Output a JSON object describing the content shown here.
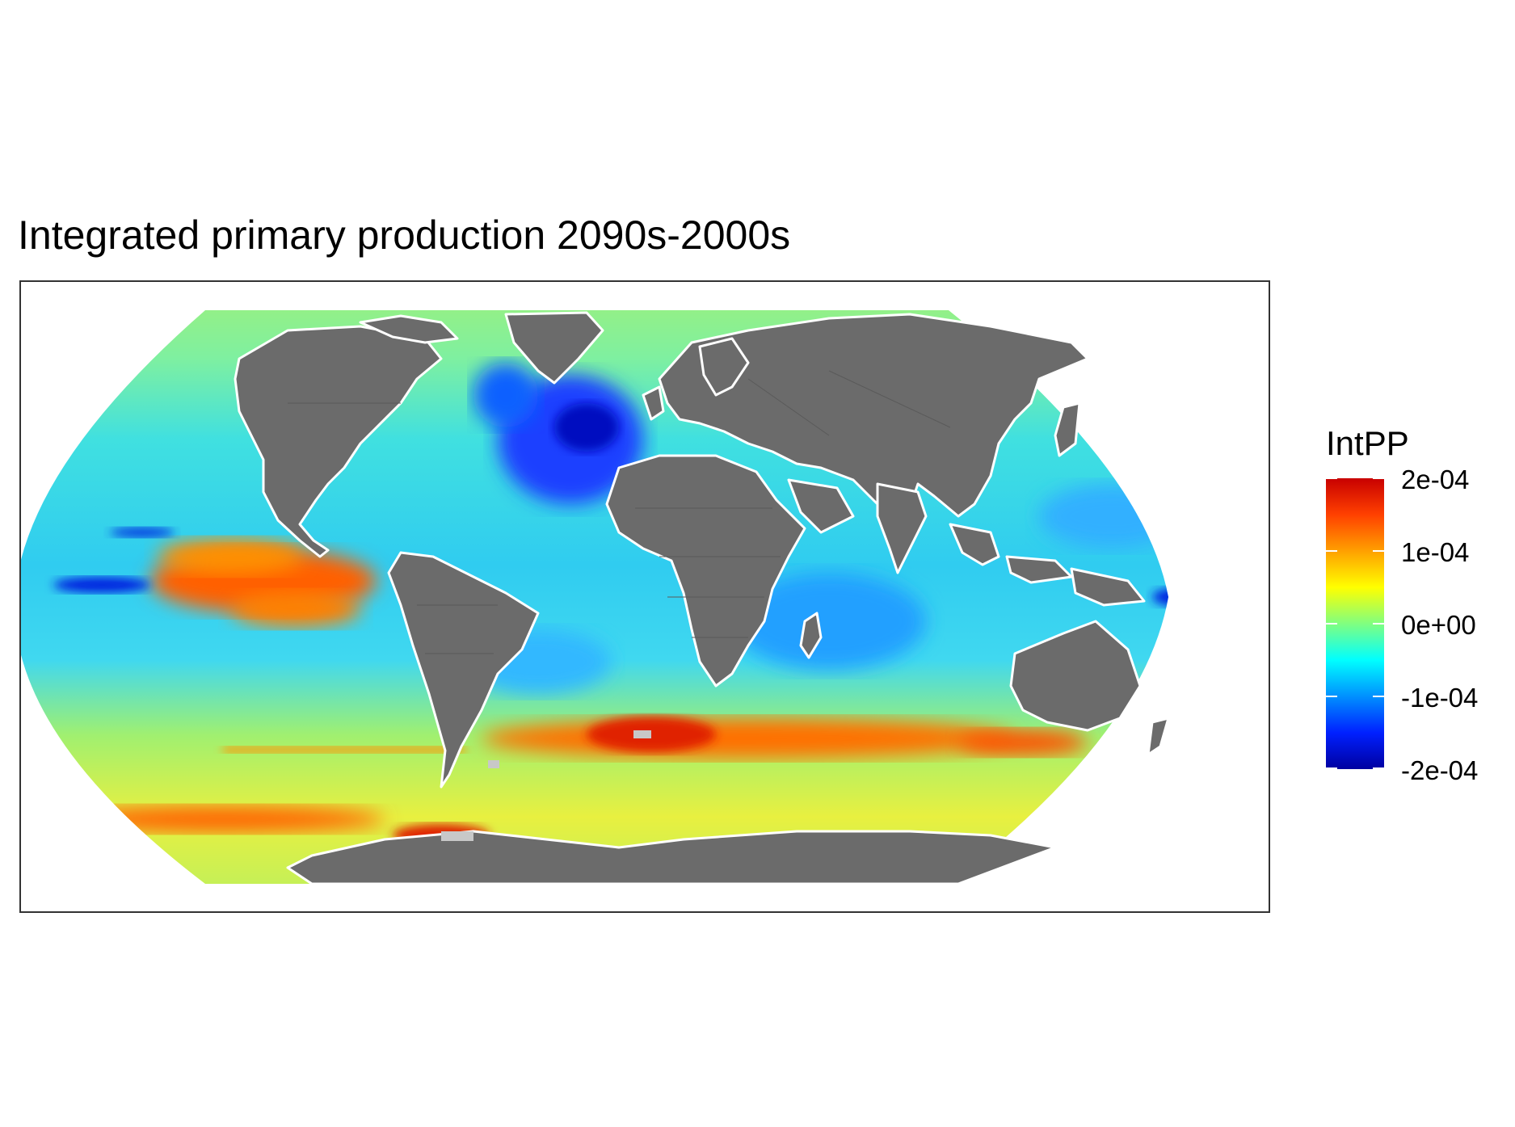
{
  "title": "Integrated primary production 2090s-2000s",
  "legend": {
    "title": "IntPP",
    "labels": [
      "2e-04",
      "1e-04",
      "0e+00",
      "-1e-04",
      "-2e-04"
    ],
    "values": [
      0.0002,
      0.0001,
      0.0,
      -0.0001,
      -0.0002
    ],
    "colors": [
      "#c80000",
      "#ff4000",
      "#ffa000",
      "#ffff00",
      "#80ff80",
      "#00ffff",
      "#0090ff",
      "#0020ff",
      "#0000a0"
    ]
  },
  "map": {
    "projection": "Robinson",
    "land_color": "#6b6b6b",
    "coastline_color": "#ffffff",
    "missing_color": "#c8c8c8"
  }
}
